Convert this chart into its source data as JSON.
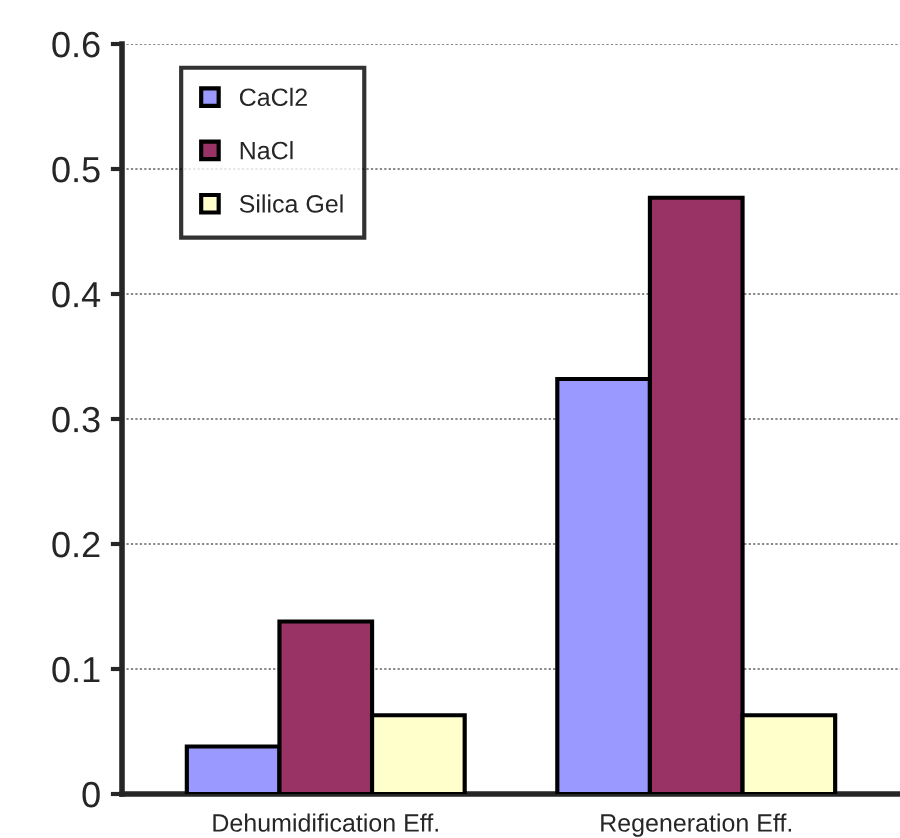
{
  "chart_data": {
    "type": "bar",
    "categories": [
      "Dehumidification Eff.",
      "Regeneration Eff."
    ],
    "series": [
      {
        "name": "CaCl2",
        "color": "#9999ff",
        "values": [
          0.038,
          0.332
        ]
      },
      {
        "name": "NaCl",
        "color": "#993366",
        "values": [
          0.138,
          0.477
        ]
      },
      {
        "name": "Silica Gel",
        "color": "#ffffcc",
        "values": [
          0.063,
          0.063
        ]
      }
    ],
    "ylim": [
      0,
      0.6
    ],
    "yticks": [
      {
        "value": 0,
        "label": "0"
      },
      0.1,
      0.2,
      0.3,
      0.4,
      0.5,
      0.6
    ],
    "grid": "y",
    "legend": "top left"
  }
}
